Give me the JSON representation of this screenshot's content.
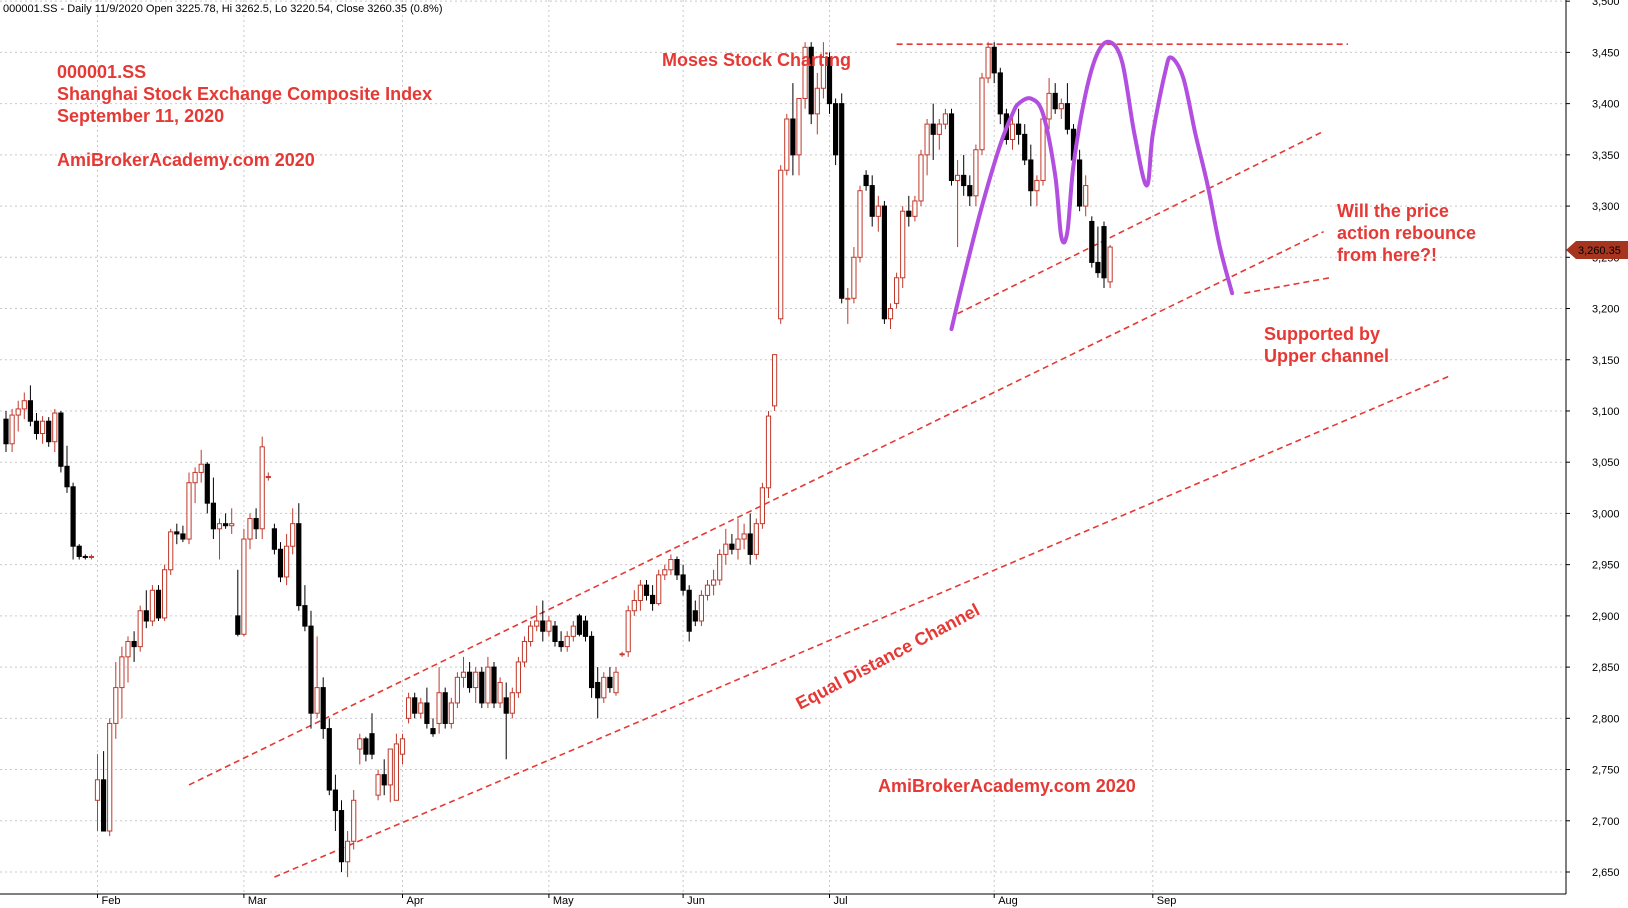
{
  "header": "000001.SS - Daily 11/9/2020 Open 3225.78, Hi 3262.5, Lo 3220.54, Close 3260.35 (0.8%)",
  "last_price_tag": "3,260.35",
  "colors": {
    "accent": "#e53935",
    "up": "#c0392b",
    "down": "#000000",
    "pattern": "#b34fe0",
    "grid": "#c9c9c9",
    "price_tag": "#a5351e"
  },
  "annotations": {
    "title_lines": [
      "000001.SS",
      "Shanghai Stock Exchange Composite Index",
      "September 11, 2020",
      "",
      "AmiBrokerAcademy.com  2020"
    ],
    "moses": "Moses Stock Charting",
    "question_lines": [
      "Will the price",
      "action rebounce",
      "from here?!"
    ],
    "support_lines": [
      "Supported by",
      "Upper channel"
    ],
    "channel_label": "Equal Distance Channel",
    "watermark": "AmiBrokerAcademy.com  2020"
  },
  "chart_data": {
    "type": "candlestick",
    "title": "000001.SS",
    "ylim": [
      2625,
      3500
    ],
    "y_ticks": [
      2650,
      2700,
      2750,
      2800,
      2850,
      2900,
      2950,
      3000,
      3050,
      3100,
      3150,
      3200,
      3250,
      3300,
      3350,
      3400,
      3450,
      3500
    ],
    "y_tick_labels": [
      "2,650",
      "2,700",
      "2,750",
      "2,800",
      "2,850",
      "2,900",
      "2,950",
      "3,000",
      "3,050",
      "3,100",
      "3,150",
      "3,200",
      "3,250",
      "3,300",
      "3,350",
      "3,400",
      "3,450",
      "3,500"
    ],
    "x_ticks": [
      {
        "label": "Feb",
        "index": 15
      },
      {
        "label": "Mar",
        "index": 39
      },
      {
        "label": "Apr",
        "index": 65
      },
      {
        "label": "May",
        "index": 89
      },
      {
        "label": "Jun",
        "index": 111
      },
      {
        "label": "Jul",
        "index": 135
      },
      {
        "label": "Aug",
        "index": 162
      },
      {
        "label": "Sep",
        "index": 188
      }
    ],
    "candles": [
      [
        3092,
        3100,
        3060,
        3068
      ],
      [
        3068,
        3102,
        3060,
        3096
      ],
      [
        3096,
        3110,
        3080,
        3102
      ],
      [
        3102,
        3118,
        3092,
        3110
      ],
      [
        3110,
        3125,
        3085,
        3090
      ],
      [
        3090,
        3098,
        3072,
        3078
      ],
      [
        3078,
        3095,
        3068,
        3090
      ],
      [
        3090,
        3094,
        3065,
        3070
      ],
      [
        3070,
        3102,
        3060,
        3098
      ],
      [
        3098,
        3100,
        3040,
        3046
      ],
      [
        3046,
        3066,
        3020,
        3026
      ],
      [
        3026,
        3030,
        2955,
        2968
      ],
      [
        2968,
        2970,
        2955,
        2958
      ],
      [
        2958,
        2960,
        2955,
        2957
      ],
      [
        2957,
        2960,
        2955,
        2958
      ],
      [
        2720,
        2765,
        2690,
        2740
      ],
      [
        2740,
        2768,
        2690,
        2690
      ],
      [
        2690,
        2800,
        2685,
        2795
      ],
      [
        2795,
        2855,
        2780,
        2830
      ],
      [
        2830,
        2870,
        2800,
        2860
      ],
      [
        2860,
        2880,
        2835,
        2875
      ],
      [
        2875,
        2885,
        2855,
        2870
      ],
      [
        2870,
        2910,
        2865,
        2905
      ],
      [
        2905,
        2925,
        2888,
        2895
      ],
      [
        2895,
        2930,
        2890,
        2925
      ],
      [
        2925,
        2930,
        2895,
        2898
      ],
      [
        2898,
        2950,
        2895,
        2945
      ],
      [
        2945,
        2985,
        2940,
        2982
      ],
      [
        2982,
        2990,
        2970,
        2980
      ],
      [
        2980,
        2988,
        2972,
        2975
      ],
      [
        2975,
        3040,
        2970,
        3030
      ],
      [
        3030,
        3045,
        3010,
        3040
      ],
      [
        3040,
        3062,
        3030,
        3048
      ],
      [
        3048,
        3050,
        3000,
        3010
      ],
      [
        3010,
        3035,
        2975,
        2985
      ],
      [
        2985,
        2995,
        2955,
        2990
      ],
      [
        2990,
        3000,
        2985,
        2988
      ],
      [
        2988,
        3005,
        2980,
        2990
      ],
      [
        2900,
        2945,
        2880,
        2882
      ],
      [
        2882,
        2985,
        2880,
        2975
      ],
      [
        2975,
        3000,
        2965,
        2995
      ],
      [
        2995,
        3005,
        2975,
        2985
      ],
      [
        2985,
        3075,
        2975,
        3065
      ],
      [
        3035,
        3040,
        3032,
        3036
      ],
      [
        2985,
        2990,
        2960,
        2965
      ],
      [
        2965,
        2972,
        2933,
        2938
      ],
      [
        2938,
        2980,
        2930,
        2968
      ],
      [
        2968,
        3005,
        2960,
        2990
      ],
      [
        2990,
        3010,
        2905,
        2910
      ],
      [
        2910,
        2930,
        2885,
        2890
      ],
      [
        2890,
        2905,
        2790,
        2805
      ],
      [
        2805,
        2880,
        2800,
        2830
      ],
      [
        2830,
        2840,
        2780,
        2790
      ],
      [
        2790,
        2800,
        2725,
        2730
      ],
      [
        2730,
        2745,
        2690,
        2710
      ],
      [
        2710,
        2720,
        2650,
        2660
      ],
      [
        2660,
        2690,
        2645,
        2680
      ],
      [
        2680,
        2730,
        2672,
        2720
      ],
      [
        2770,
        2785,
        2755,
        2780
      ],
      [
        2780,
        2782,
        2758,
        2765
      ],
      [
        2785,
        2805,
        2760,
        2765
      ],
      [
        2725,
        2750,
        2720,
        2745
      ],
      [
        2745,
        2760,
        2725,
        2735
      ],
      [
        2735,
        2770,
        2718,
        2770
      ],
      [
        2720,
        2785,
        2720,
        2775
      ],
      [
        2765,
        2785,
        2755,
        2780
      ],
      [
        2800,
        2825,
        2795,
        2820
      ],
      [
        2820,
        2825,
        2800,
        2805
      ],
      [
        2805,
        2820,
        2800,
        2815
      ],
      [
        2815,
        2830,
        2790,
        2795
      ],
      [
        2790,
        2800,
        2782,
        2785
      ],
      [
        2795,
        2850,
        2785,
        2825
      ],
      [
        2825,
        2830,
        2790,
        2795
      ],
      [
        2795,
        2820,
        2790,
        2815
      ],
      [
        2815,
        2845,
        2810,
        2840
      ],
      [
        2840,
        2860,
        2830,
        2845
      ],
      [
        2845,
        2855,
        2825,
        2830
      ],
      [
        2830,
        2850,
        2815,
        2845
      ],
      [
        2845,
        2850,
        2810,
        2815
      ],
      [
        2815,
        2860,
        2810,
        2850
      ],
      [
        2850,
        2855,
        2810,
        2815
      ],
      [
        2815,
        2840,
        2810,
        2835
      ],
      [
        2820,
        2835,
        2760,
        2805
      ],
      [
        2805,
        2830,
        2800,
        2825
      ],
      [
        2825,
        2860,
        2820,
        2855
      ],
      [
        2855,
        2880,
        2850,
        2875
      ],
      [
        2875,
        2895,
        2870,
        2890
      ],
      [
        2890,
        2910,
        2885,
        2895
      ],
      [
        2895,
        2915,
        2875,
        2885
      ],
      [
        2885,
        2900,
        2880,
        2895
      ],
      [
        2890,
        2895,
        2870,
        2875
      ],
      [
        2875,
        2885,
        2865,
        2870
      ],
      [
        2870,
        2885,
        2865,
        2880
      ],
      [
        2880,
        2895,
        2875,
        2890
      ],
      [
        2900,
        2902,
        2880,
        2882
      ],
      [
        2895,
        2900,
        2875,
        2880
      ],
      [
        2880,
        2885,
        2820,
        2830
      ],
      [
        2835,
        2850,
        2800,
        2820
      ],
      [
        2820,
        2845,
        2815,
        2840
      ],
      [
        2840,
        2850,
        2825,
        2830
      ],
      [
        2825,
        2850,
        2822,
        2845
      ],
      [
        2862,
        2865,
        2860,
        2863
      ],
      [
        2865,
        2910,
        2860,
        2905
      ],
      [
        2905,
        2925,
        2900,
        2915
      ],
      [
        2915,
        2935,
        2905,
        2930
      ],
      [
        2930,
        2935,
        2915,
        2920
      ],
      [
        2920,
        2930,
        2905,
        2912
      ],
      [
        2912,
        2945,
        2910,
        2940
      ],
      [
        2940,
        2950,
        2935,
        2945
      ],
      [
        2945,
        2960,
        2940,
        2955
      ],
      [
        2955,
        2958,
        2935,
        2940
      ],
      [
        2940,
        2950,
        2920,
        2925
      ],
      [
        2925,
        2930,
        2875,
        2885
      ],
      [
        2905,
        2915,
        2890,
        2895
      ],
      [
        2895,
        2925,
        2890,
        2920
      ],
      [
        2920,
        2935,
        2915,
        2930
      ],
      [
        2930,
        2945,
        2920,
        2935
      ],
      [
        2935,
        2965,
        2930,
        2960
      ],
      [
        2960,
        2985,
        2950,
        2970
      ],
      [
        2970,
        2980,
        2960,
        2965
      ],
      [
        2965,
        2995,
        2955,
        2975
      ],
      [
        2975,
        2990,
        2965,
        2980
      ],
      [
        2980,
        3000,
        2950,
        2960
      ],
      [
        2960,
        2995,
        2955,
        2990
      ],
      [
        2990,
        3030,
        2985,
        3025
      ],
      [
        3025,
        3100,
        3015,
        3095
      ],
      [
        3105,
        3155,
        3100,
        3155
      ],
      [
        3190,
        3340,
        3185,
        3335
      ],
      [
        3335,
        3390,
        3330,
        3385
      ],
      [
        3385,
        3420,
        3330,
        3350
      ],
      [
        3350,
        3400,
        3330,
        3405
      ],
      [
        3405,
        3460,
        3395,
        3455
      ],
      [
        3455,
        3460,
        3380,
        3390
      ],
      [
        3390,
        3430,
        3370,
        3415
      ],
      [
        3415,
        3460,
        3405,
        3445
      ],
      [
        3445,
        3450,
        3390,
        3400
      ],
      [
        3400,
        3405,
        3340,
        3350
      ],
      [
        3400,
        3410,
        3205,
        3210
      ],
      [
        3210,
        3220,
        3185,
        3210
      ],
      [
        3210,
        3260,
        3205,
        3250
      ],
      [
        3250,
        3320,
        3245,
        3315
      ],
      [
        3330,
        3335,
        3315,
        3320
      ],
      [
        3320,
        3330,
        3280,
        3290
      ],
      [
        3290,
        3310,
        3275,
        3300
      ],
      [
        3300,
        3305,
        3185,
        3190
      ],
      [
        3190,
        3205,
        3180,
        3200
      ],
      [
        3205,
        3235,
        3200,
        3230
      ],
      [
        3230,
        3300,
        3220,
        3295
      ],
      [
        3295,
        3310,
        3280,
        3290
      ],
      [
        3290,
        3310,
        3285,
        3305
      ],
      [
        3305,
        3355,
        3300,
        3350
      ],
      [
        3350,
        3385,
        3330,
        3380
      ],
      [
        3380,
        3400,
        3345,
        3370
      ],
      [
        3370,
        3385,
        3355,
        3380
      ],
      [
        3380,
        3395,
        3375,
        3390
      ],
      [
        3390,
        3395,
        3320,
        3325
      ],
      [
        3325,
        3345,
        3260,
        3330
      ],
      [
        3330,
        3350,
        3310,
        3320
      ],
      [
        3320,
        3330,
        3300,
        3310
      ],
      [
        3310,
        3360,
        3300,
        3355
      ],
      [
        3355,
        3430,
        3350,
        3425
      ],
      [
        3425,
        3460,
        3420,
        3455
      ],
      [
        3455,
        3460,
        3420,
        3430
      ],
      [
        3430,
        3435,
        3380,
        3390
      ],
      [
        3390,
        3395,
        3360,
        3365
      ],
      [
        3365,
        3390,
        3355,
        3380
      ],
      [
        3380,
        3395,
        3360,
        3370
      ],
      [
        3370,
        3380,
        3340,
        3345
      ],
      [
        3345,
        3360,
        3300,
        3315
      ],
      [
        3315,
        3330,
        3300,
        3325
      ],
      [
        3325,
        3390,
        3320,
        3385
      ],
      [
        3385,
        3425,
        3375,
        3410
      ],
      [
        3410,
        3420,
        3390,
        3395
      ],
      [
        3395,
        3405,
        3385,
        3400
      ],
      [
        3400,
        3420,
        3370,
        3375
      ],
      [
        3375,
        3380,
        3335,
        3345
      ],
      [
        3345,
        3355,
        3295,
        3300
      ],
      [
        3300,
        3330,
        3290,
        3320
      ],
      [
        3285,
        3290,
        3240,
        3245
      ],
      [
        3245,
        3280,
        3230,
        3235
      ],
      [
        3280,
        3285,
        3220,
        3230
      ],
      [
        3226,
        3262,
        3220,
        3260
      ]
    ],
    "overlays": [
      {
        "name": "channel upper line",
        "style": "dashed",
        "points": [
          [
            30,
            2735
          ],
          [
            216,
            3275
          ]
        ]
      },
      {
        "name": "channel lower line",
        "style": "dashed",
        "points": [
          [
            44,
            2645
          ],
          [
            237,
            3135
          ]
        ]
      },
      {
        "name": "resistance",
        "style": "dashed",
        "points": [
          [
            146,
            3458
          ],
          [
            220,
            3458
          ]
        ]
      },
      {
        "name": "support trendline",
        "style": "dashed",
        "points": [
          [
            156,
            3195
          ],
          [
            216,
            3373
          ]
        ]
      },
      {
        "name": "support extension",
        "style": "dashed",
        "points": [
          [
            203,
            3215
          ],
          [
            217,
            3230
          ]
        ]
      }
    ],
    "pattern_path": [
      [
        155,
        3180
      ],
      [
        157,
        3230
      ],
      [
        160,
        3300
      ],
      [
        163,
        3360
      ],
      [
        165,
        3390
      ],
      [
        166,
        3400
      ],
      [
        168,
        3405
      ],
      [
        170,
        3390
      ],
      [
        172,
        3330
      ],
      [
        173,
        3270
      ],
      [
        174,
        3275
      ],
      [
        175,
        3340
      ],
      [
        177,
        3410
      ],
      [
        179,
        3450
      ],
      [
        181,
        3460
      ],
      [
        183,
        3440
      ],
      [
        185,
        3370
      ],
      [
        187,
        3320
      ],
      [
        188,
        3370
      ],
      [
        190,
        3430
      ],
      [
        191,
        3445
      ],
      [
        193,
        3425
      ],
      [
        195,
        3370
      ],
      [
        197,
        3320
      ],
      [
        199,
        3260
      ],
      [
        201,
        3215
      ]
    ]
  }
}
